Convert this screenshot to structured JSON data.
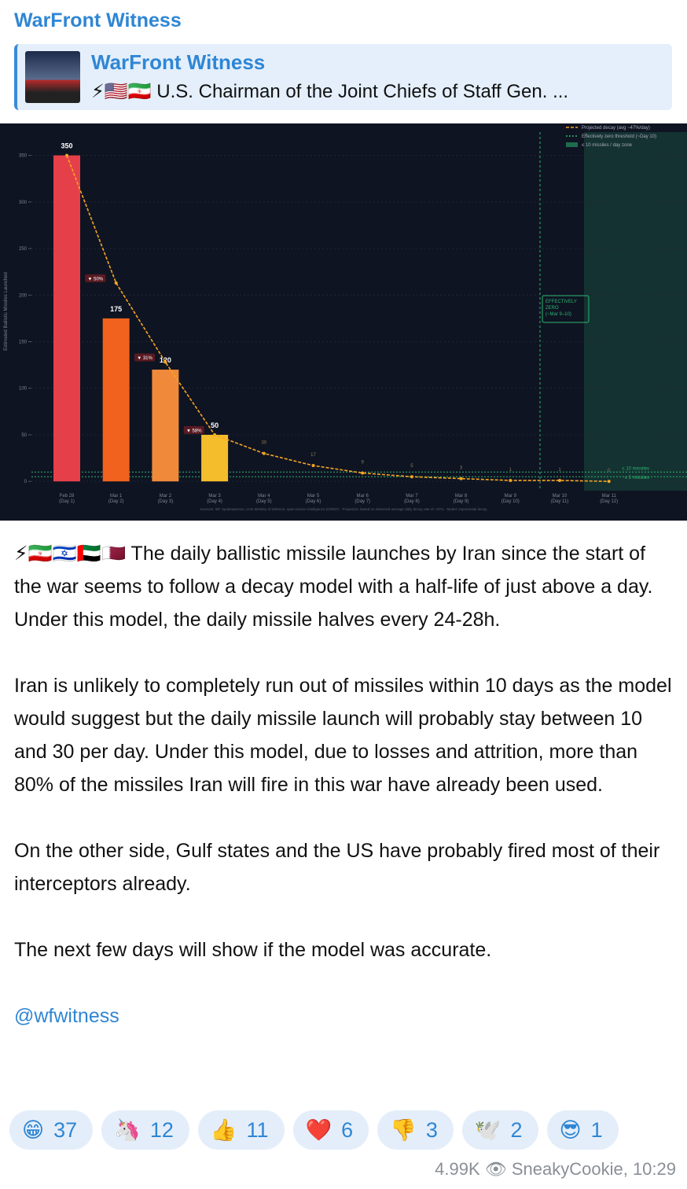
{
  "channel": "WarFront Witness",
  "reply": {
    "name": "WarFront Witness",
    "text": "⚡🇺🇸🇮🇷 U.S. Chairman of the Joint Chiefs of Staff Gen. ..."
  },
  "chart_data": {
    "type": "bar",
    "y_label": "Estimated Ballistic Missiles Launched",
    "categories": [
      "Feb 28",
      "Mar 1",
      "Mar 2",
      "Mar 3",
      "Mar 4",
      "Mar 5",
      "Mar 6",
      "Mar 7",
      "Mar 8",
      "Mar 9",
      "Mar 10",
      "Mar 11"
    ],
    "category_days": [
      "(Day 1)",
      "(Day 2)",
      "(Day 3)",
      "(Day 4)",
      "(Day 5)",
      "(Day 6)",
      "(Day 7)",
      "(Day 8)",
      "(Day 9)",
      "(Day 10)",
      "(Day 11)",
      "(Day 12)"
    ],
    "values": [
      350,
      175,
      120,
      50,
      null,
      null,
      null,
      null,
      null,
      null,
      null,
      null
    ],
    "colors": [
      "#e5404a",
      "#f0621e",
      "#f08a3a",
      "#f4bd2c",
      null,
      null,
      null,
      null,
      null,
      null,
      null,
      null
    ],
    "drops": [
      "▼ 50%",
      "▼ 31%",
      "▼ 58%"
    ],
    "series": [
      {
        "name": "Projected decay (avg −47%/day)",
        "color": "#f5a623",
        "values": [
          350,
          213,
          128,
          50,
          30,
          17,
          9,
          5,
          3,
          1,
          1,
          0
        ]
      }
    ],
    "threshold": {
      "name": "Effectively zero threshold (~Day 10)",
      "color": "#2bb673"
    },
    "zone": {
      "name": "≤ 10 missiles / day zone",
      "color": "#1f6b4e"
    },
    "annotation": [
      "EFFECTIVELY",
      "ZERO",
      "(~Mar 9–10)"
    ],
    "hlines": [
      {
        "value": 10,
        "label": "≤ 10 missiles"
      },
      {
        "value": 5,
        "label": "≤ 5 missiles"
      }
    ],
    "source": "Sources: IDF Spokesperson, UAE Ministry of Defence, open-source intelligence (OSINT) · Projection: based on observed average daily decay rate of ~47% · Model: exponential decay",
    "ylim": [
      -10,
      375
    ],
    "yticks": [
      0,
      50,
      100,
      150,
      200,
      250,
      300,
      350
    ],
    "grid": true
  },
  "paragraphs": [
    "⚡🇮🇷🇮🇱🇦🇪🇶🇦 The daily ballistic missile launches by Iran since the start of the war seems to follow a decay model with a half-life of just above a day. Under this model, the daily missile halves every 24-28h.",
    "Iran is unlikely to completely run out of missiles within 10 days as the model would suggest but the daily missile launch will probably stay between 10 and 30 per day. Under this model, due to losses and attrition, more than 80% of the missiles Iran will fire in this war have already been used.",
    "On the other side, Gulf states and the US have probably fired most of their interceptors already.",
    "The next few days will show if the model was accurate."
  ],
  "link": "@wfwitness",
  "reactions": [
    {
      "emoji": "😁",
      "count": 37
    },
    {
      "emoji": "🦄",
      "count": 12
    },
    {
      "emoji": "👍",
      "count": 11
    },
    {
      "emoji": "❤️",
      "count": 6
    },
    {
      "emoji": "👎",
      "count": 3
    },
    {
      "emoji": "🕊️",
      "count": 2
    },
    {
      "emoji": "😎",
      "count": 1
    }
  ],
  "views": "4.99K",
  "footer": "SneakyCookie, 10:29"
}
